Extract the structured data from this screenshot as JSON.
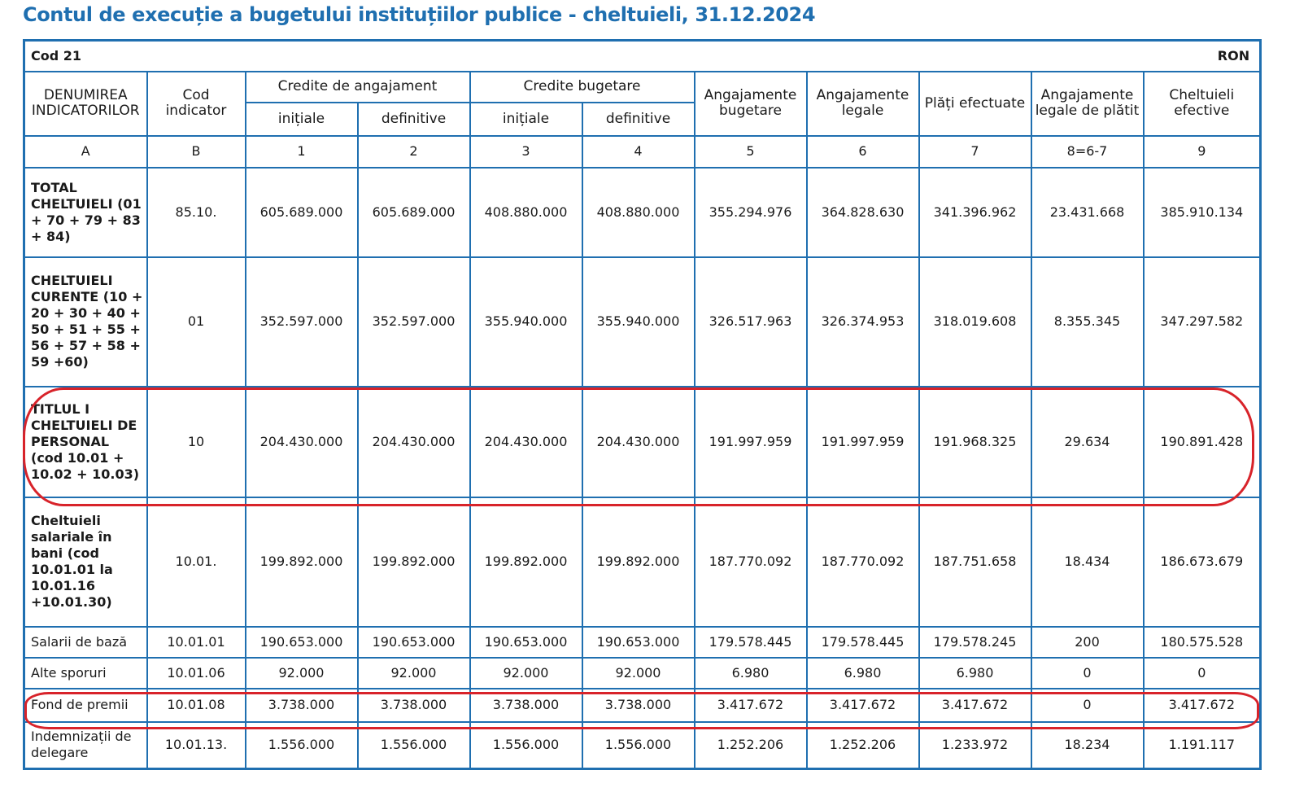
{
  "title": "Contul de execuție a bugetului instituțiilor publice - cheltuieli, 31.12.2024",
  "cod_label": "Cod 21",
  "currency": "RON",
  "headers": {
    "denumirea": "DENUMIREA INDICATORILOR",
    "cod_indicator": "Cod indicator",
    "credite_angajament": "Credite de angajament",
    "credite_bugetare": "Credite bugetare",
    "initiale_1": "inițiale",
    "definitive_1": "definitive",
    "initiale_2": "inițiale",
    "definitive_2": "definitive",
    "angajamente_bugetare": "Angajamente bugetare",
    "angajamente_legale": "Angajamente legale",
    "plati_efectuate": "Plăți efectuate",
    "angajamente_legale_de_platit": "Angajamente legale de plătit",
    "cheltuieli_efective": "Cheltuieli efective"
  },
  "column_numbers": [
    "A",
    "B",
    "1",
    "2",
    "3",
    "4",
    "5",
    "6",
    "7",
    "8=6-7",
    "9"
  ],
  "rows": [
    {
      "label": "TOTAL CHELTUIELI (01 + 70 + 79 + 83 + 84)",
      "cod": "85.10.",
      "values": [
        "605.689.000",
        "605.689.000",
        "408.880.000",
        "408.880.000",
        "355.294.976",
        "364.828.630",
        "341.396.962",
        "23.431.668",
        "385.910.134"
      ]
    },
    {
      "label": "CHELTUIELI CURENTE (10 + 20 + 30 + 40 + 50 + 51 + 55 + 56 + 57 + 58 + 59 +60)",
      "cod": "01",
      "values": [
        "352.597.000",
        "352.597.000",
        "355.940.000",
        "355.940.000",
        "326.517.963",
        "326.374.953",
        "318.019.608",
        "8.355.345",
        "347.297.582"
      ]
    },
    {
      "label": "TITLUL I CHELTUIELI DE PERSONAL (cod 10.01 + 10.02 + 10.03)",
      "cod": "10",
      "values": [
        "204.430.000",
        "204.430.000",
        "204.430.000",
        "204.430.000",
        "191.997.959",
        "191.997.959",
        "191.968.325",
        "29.634",
        "190.891.428"
      ]
    },
    {
      "label": "Cheltuieli salariale în bani (cod 10.01.01 la 10.01.16 +10.01.30)",
      "cod": "10.01.",
      "values": [
        "199.892.000",
        "199.892.000",
        "199.892.000",
        "199.892.000",
        "187.770.092",
        "187.770.092",
        "187.751.658",
        "18.434",
        "186.673.679"
      ]
    },
    {
      "label": "Salarii de bază",
      "cod": "10.01.01",
      "values": [
        "190.653.000",
        "190.653.000",
        "190.653.000",
        "190.653.000",
        "179.578.445",
        "179.578.445",
        "179.578.245",
        "200",
        "180.575.528"
      ]
    },
    {
      "label": "Alte sporuri",
      "cod": "10.01.06",
      "values": [
        "92.000",
        "92.000",
        "92.000",
        "92.000",
        "6.980",
        "6.980",
        "6.980",
        "0",
        "0"
      ]
    },
    {
      "label": "Fond de premii",
      "cod": "10.01.08",
      "values": [
        "3.738.000",
        "3.738.000",
        "3.738.000",
        "3.738.000",
        "3.417.672",
        "3.417.672",
        "3.417.672",
        "0",
        "3.417.672"
      ]
    },
    {
      "label": "Indemnizații de delegare",
      "cod": "10.01.13.",
      "values": [
        "1.556.000",
        "1.556.000",
        "1.556.000",
        "1.556.000",
        "1.252.206",
        "1.252.206",
        "1.233.972",
        "18.234",
        "1.191.117"
      ]
    }
  ],
  "highlight_color": "#d8232a",
  "border_color": "#1f6fb0"
}
